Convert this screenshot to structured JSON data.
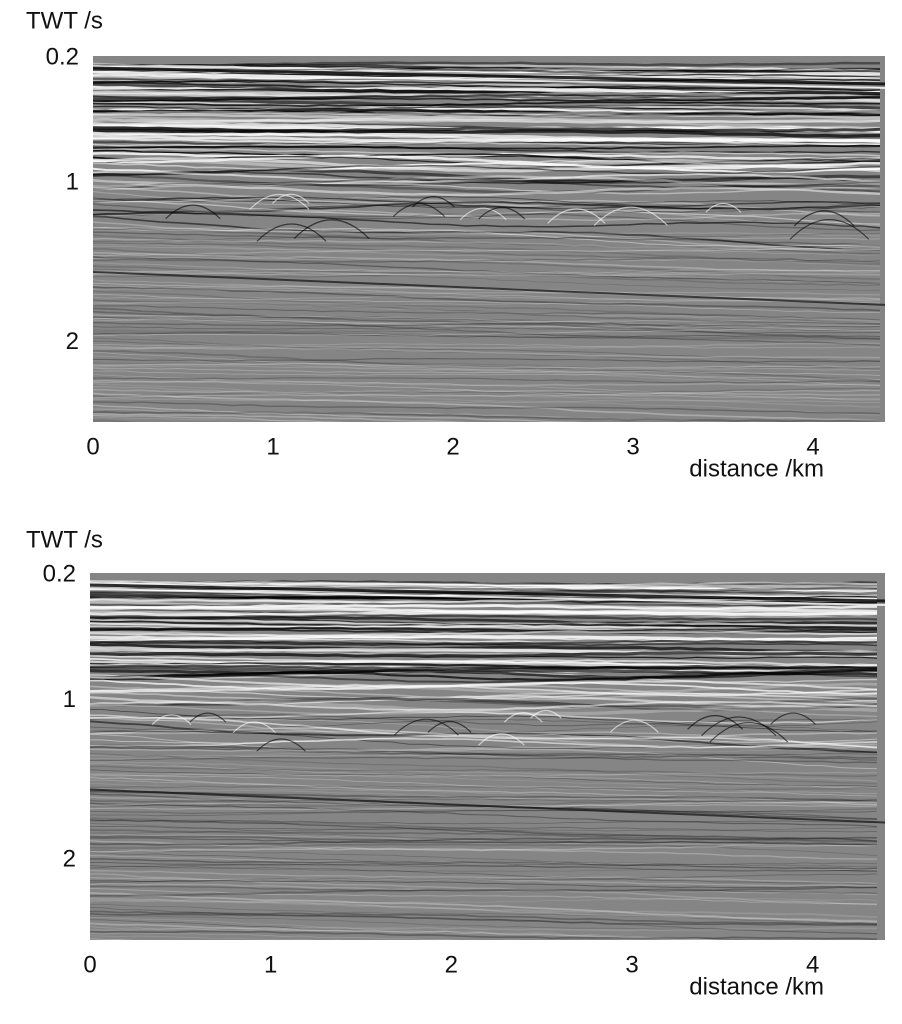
{
  "chart_data": [
    {
      "type": "seismic",
      "ylabel": "TWT /s",
      "xlabel": "distance /km",
      "xlim": [
        0,
        4.4
      ],
      "xticks": [
        0,
        1,
        2,
        3,
        4
      ],
      "ylim": [
        0.2,
        2.5
      ],
      "yticks": [
        0.2,
        1,
        2
      ],
      "y_inverted": true,
      "grid": false
    },
    {
      "type": "seismic",
      "ylabel": "TWT /s",
      "xlabel": "distance /km",
      "xlim": [
        0,
        4.4
      ],
      "xticks": [
        0,
        1,
        2,
        3,
        4
      ],
      "ylim": [
        0.2,
        2.5
      ],
      "yticks": [
        0.2,
        1,
        2
      ],
      "y_inverted": true,
      "grid": false
    }
  ]
}
